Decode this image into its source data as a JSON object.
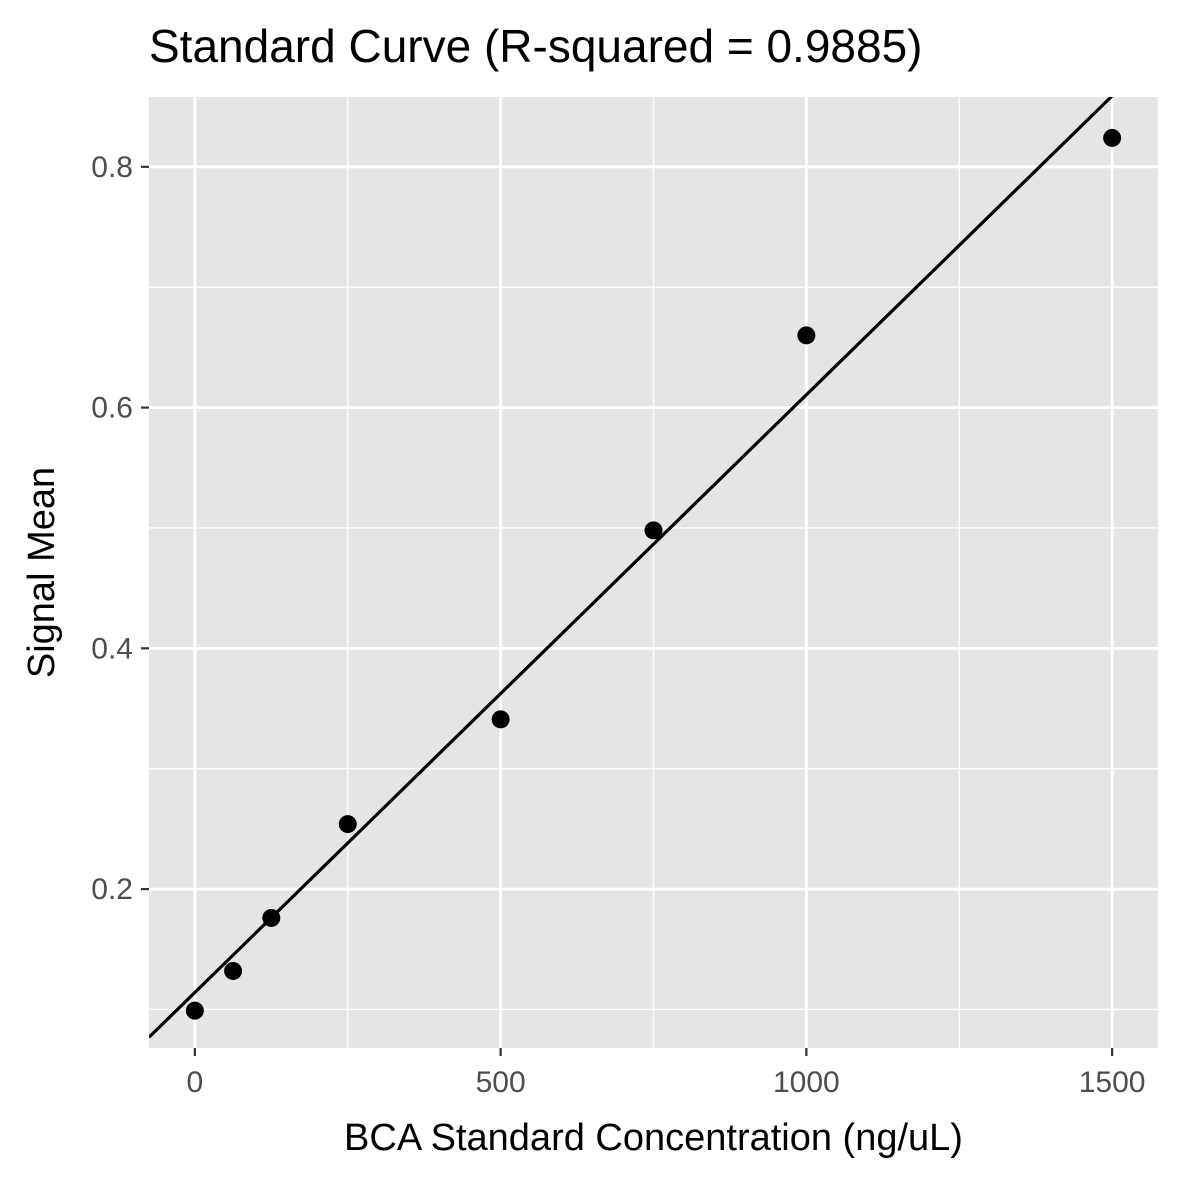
{
  "chart_data": {
    "type": "scatter",
    "title": "Standard Curve (R-squared = 0.9885)",
    "xlabel": "BCA Standard Concentration (ng/uL)",
    "ylabel": "Signal Mean",
    "xlim": [
      -75,
      1575
    ],
    "ylim": [
      0.068,
      0.858
    ],
    "x_ticks": [
      0,
      500,
      1000,
      1500
    ],
    "x_tick_labels": [
      "0",
      "500",
      "1000",
      "1500"
    ],
    "x_minor_ticks": [
      250,
      750,
      1250
    ],
    "y_ticks": [
      0.2,
      0.4,
      0.6,
      0.8
    ],
    "y_tick_labels": [
      "0.2",
      "0.4",
      "0.6",
      "0.8"
    ],
    "y_minor_ticks": [
      0.1,
      0.3,
      0.5,
      0.7
    ],
    "grid": true,
    "series": [
      {
        "type": "scatter",
        "x": [
          0,
          62.5,
          125,
          250,
          500,
          750,
          1000,
          1500
        ],
        "y": [
          0.099,
          0.132,
          0.176,
          0.254,
          0.341,
          0.498,
          0.66,
          0.824
        ]
      }
    ],
    "fit_line": {
      "type": "line",
      "x": [
        -75,
        1500
      ],
      "y": [
        0.0769,
        0.8589
      ]
    },
    "colors": {
      "panel_background": "#e5e5e5",
      "grid_line": "#ffffff",
      "point": "#000000",
      "fit_line": "#000000",
      "tick_text": "#4d4d4d",
      "axis_tick": "#333333"
    }
  }
}
